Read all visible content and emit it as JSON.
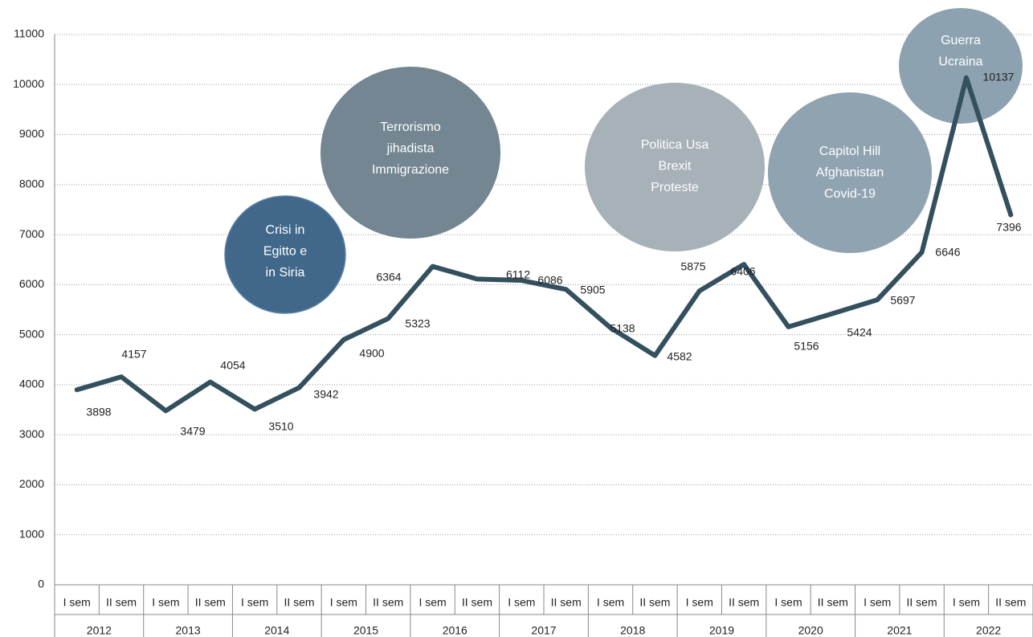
{
  "chart_data": {
    "type": "line",
    "categories": [
      "I sem",
      "II sem",
      "I sem",
      "II sem",
      "I sem",
      "II sem",
      "I sem",
      "II sem",
      "I sem",
      "II sem",
      "I sem",
      "II sem",
      "I sem",
      "II sem",
      "I sem",
      "II sem",
      "I sem",
      "II sem",
      "I sem",
      "II sem",
      "I sem",
      "II sem"
    ],
    "groups": [
      "2012",
      "2013",
      "2014",
      "2015",
      "2016",
      "2017",
      "2018",
      "2019",
      "2020",
      "2021",
      "2022"
    ],
    "values": [
      3898,
      4157,
      3479,
      4054,
      3510,
      3942,
      4900,
      5323,
      6364,
      6112,
      6086,
      5905,
      5138,
      4582,
      5875,
      6406,
      5156,
      5424,
      5697,
      6646,
      10137,
      7396
    ],
    "color": "#34505f",
    "ylim": [
      0,
      11000
    ],
    "yticks": [
      0,
      1000,
      2000,
      3000,
      4000,
      5000,
      6000,
      7000,
      8000,
      9000,
      10000,
      11000
    ],
    "grid": true,
    "annotations": [
      {
        "lines": [
          "Crisi in",
          "Egitto e",
          "in Siria"
        ],
        "color": "#41688a"
      },
      {
        "lines": [
          "Terrorismo",
          "jihadista",
          "Immigrazione"
        ],
        "color": "#738691"
      },
      {
        "lines": [
          "Politica Usa",
          "Brexit",
          "Proteste"
        ],
        "color": "#a6b1b8"
      },
      {
        "lines": [
          "Capitol Hill",
          "Afghanistan",
          "Covid-19"
        ],
        "color": "#8fa3b0"
      },
      {
        "lines": [
          "Guerra",
          "Ucraina"
        ],
        "color": "#8da2b0"
      }
    ]
  }
}
